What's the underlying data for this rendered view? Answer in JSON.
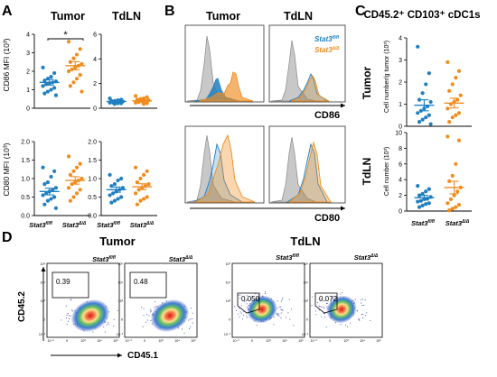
{
  "panels": {
    "A": "A",
    "B": "B",
    "C": "C",
    "D": "D"
  },
  "titles": {
    "tumor": "Tumor",
    "tdln": "TdLN",
    "c_title": "CD45.2⁺ CD103⁺ cDC1s"
  },
  "genotypes": {
    "ctrl": "Stat3",
    "ctrl_sup": "fl/fl",
    "ko": "Stat3",
    "ko_sup": "Δ/Δ"
  },
  "legend": {
    "ctrl": "Stat3",
    "ctrl_sup": "fl/fl",
    "ko": "Stat3",
    "ko_sup": "Δ/Δ"
  },
  "axes": {
    "cd86_mfi": "CD86 MFI (10³)",
    "cd80_mfi": "CD80 MFI (10³)",
    "cd86": "CD86",
    "cd80": "CD80",
    "cell_num_tumor": "Cell number/g tumor (10³)",
    "cell_num_tdln": "Cell number (10³)",
    "cd45_2": "CD45.2",
    "cd45_1": "CD45.1",
    "tumor_side": "Tumor",
    "tdln_side": "TdLN"
  },
  "colors": {
    "ctrl": "#1f7fc0",
    "ko": "#f08c1e",
    "gray": "#c8c8c8"
  },
  "significance": "*",
  "flow_gates": [
    "0.39",
    "0.48",
    "0.050",
    "0.072"
  ],
  "flow_ticks": [
    "10⁻³",
    "0",
    "10³",
    "10⁴",
    "10⁵"
  ],
  "chart_data": [
    {
      "id": "A-tumor-cd86",
      "type": "scatter",
      "ylim": [
        0,
        4
      ],
      "yticks": [
        "0",
        "1",
        "2",
        "3",
        "4"
      ],
      "series": [
        {
          "name": "Stat3 fl/fl",
          "values": [
            2.2,
            1.9,
            1.7,
            1.6,
            1.5,
            1.45,
            1.4,
            1.35,
            1.3,
            1.2,
            1.1,
            1.0,
            0.9,
            0.8,
            0.7
          ],
          "mean": 1.4,
          "sem": 0.15
        },
        {
          "name": "Stat3 Δ/Δ",
          "values": [
            3.6,
            3.2,
            2.9,
            2.7,
            2.5,
            2.4,
            2.3,
            2.2,
            2.1,
            2.0,
            1.8,
            1.6,
            1.4,
            1.2,
            0.9
          ],
          "mean": 2.3,
          "sem": 0.22
        }
      ]
    },
    {
      "id": "A-tdln-cd86",
      "type": "scatter",
      "ylim": [
        0,
        6
      ],
      "yticks": [
        "0",
        "2",
        "4",
        "6"
      ],
      "series": [
        {
          "name": "Stat3 fl/fl",
          "values": [
            0.8,
            0.7,
            0.65,
            0.6,
            0.6,
            0.55,
            0.5,
            0.5,
            0.45,
            0.45,
            0.4,
            0.4,
            0.35
          ],
          "mean": 0.55,
          "sem": 0.04
        },
        {
          "name": "Stat3 Δ/Δ",
          "values": [
            1.0,
            0.9,
            0.8,
            0.75,
            0.7,
            0.65,
            0.6,
            0.55,
            0.5,
            0.45,
            0.4,
            0.35
          ],
          "mean": 0.6,
          "sem": 0.06
        }
      ]
    },
    {
      "id": "A-tumor-cd80",
      "type": "scatter",
      "ylim": [
        0,
        2
      ],
      "yticks": [
        "0.0",
        "0.5",
        "1.0",
        "1.5",
        "2.0"
      ],
      "series": [
        {
          "name": "Stat3 fl/fl",
          "values": [
            1.3,
            1.2,
            1.05,
            0.9,
            0.85,
            0.75,
            0.7,
            0.65,
            0.6,
            0.55,
            0.5,
            0.45,
            0.4,
            0.3,
            0.2
          ],
          "mean": 0.65,
          "sem": 0.09
        },
        {
          "name": "Stat3 Δ/Δ",
          "values": [
            1.6,
            1.4,
            1.3,
            1.2,
            1.1,
            1.0,
            0.95,
            0.9,
            0.85,
            0.75,
            0.7,
            0.6,
            0.5,
            0.4
          ],
          "mean": 0.95,
          "sem": 0.1
        }
      ]
    },
    {
      "id": "A-tdln-cd80",
      "type": "scatter",
      "ylim": [
        0,
        2
      ],
      "yticks": [
        "0.0",
        "0.5",
        "1.0",
        "1.5",
        "2.0"
      ],
      "series": [
        {
          "name": "Stat3 fl/fl",
          "values": [
            1.1,
            1.0,
            0.95,
            0.85,
            0.8,
            0.75,
            0.7,
            0.65,
            0.6,
            0.55,
            0.5,
            0.45,
            0.4,
            0.35
          ],
          "mean": 0.7,
          "sem": 0.07
        },
        {
          "name": "Stat3 Δ/Δ",
          "values": [
            1.3,
            1.2,
            1.1,
            1.0,
            0.9,
            0.85,
            0.8,
            0.75,
            0.7,
            0.6,
            0.5,
            0.45,
            0.4,
            0.3
          ],
          "mean": 0.78,
          "sem": 0.08
        }
      ]
    },
    {
      "id": "C-tumor",
      "type": "scatter",
      "ylim": [
        0,
        4
      ],
      "yticks": [
        "0",
        "1",
        "2",
        "3",
        "4"
      ],
      "series": [
        {
          "name": "Stat3 fl/fl",
          "values": [
            3.6,
            2.4,
            1.9,
            1.5,
            1.2,
            1.1,
            0.9,
            0.8,
            0.7,
            0.6,
            0.5,
            0.4,
            0.3,
            0.2,
            0.1
          ],
          "mean": 0.95,
          "sem": 0.25
        },
        {
          "name": "Stat3 Δ/Δ",
          "values": [
            2.9,
            2.5,
            2.2,
            1.9,
            1.6,
            1.4,
            1.2,
            1.1,
            1.0,
            0.8,
            0.6,
            0.5,
            0.4,
            0.2
          ],
          "mean": 1.05,
          "sem": 0.22
        }
      ]
    },
    {
      "id": "C-tdln",
      "type": "scatter",
      "ylim": [
        0,
        10
      ],
      "yticks": [
        "0",
        "2",
        "4",
        "6",
        "8",
        "10"
      ],
      "series": [
        {
          "name": "Stat3 fl/fl",
          "values": [
            3.2,
            2.8,
            2.5,
            2.2,
            2.0,
            1.8,
            1.6,
            1.5,
            1.3,
            1.2,
            1.0,
            0.9,
            0.7,
            0.5
          ],
          "mean": 1.7,
          "sem": 0.3
        },
        {
          "name": "Stat3 Δ/Δ",
          "values": [
            9.5,
            9.0,
            6.0,
            4.5,
            3.8,
            3.0,
            2.5,
            2.0,
            1.5,
            1.0,
            0.8,
            0.5,
            0.3,
            0.1
          ],
          "mean": 3.0,
          "sem": 0.8
        }
      ]
    }
  ]
}
